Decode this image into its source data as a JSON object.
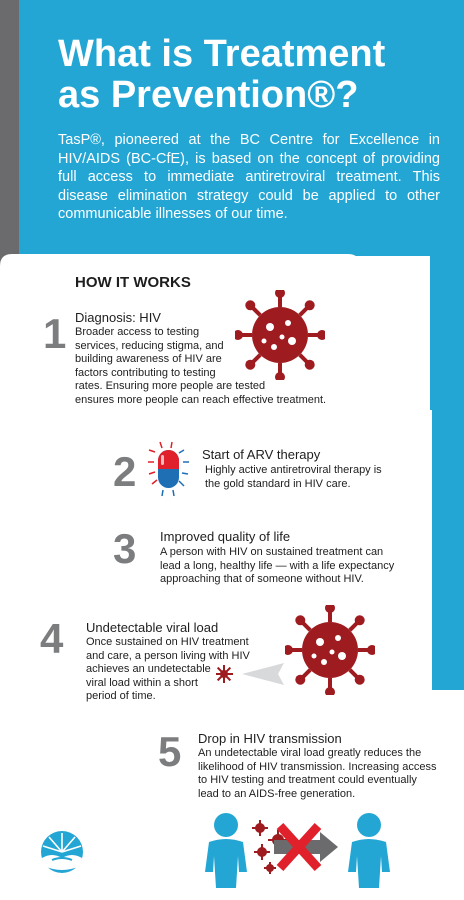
{
  "header": {
    "title_line1": "What is Treatment",
    "title_line2": "as Prevention®?",
    "intro": "TasP®, pioneered at the BC Centre for Excellence in HIV/AIDS (BC-CfE), is based on the concept of providing full access to immediate antiretroviral treatment. This disease elimination strategy could be applied to other communicable illnesses of our time."
  },
  "section_heading": "HOW IT WORKS",
  "steps": [
    {
      "number": "1",
      "title": "Diagnosis: HIV",
      "text_lines": [
        "Broader access to testing",
        "services, reducing stigma, and",
        "building awareness of HIV are",
        "factors contributing to testing",
        "rates. Ensuring more people are tested",
        "ensures more people can reach effective treatment."
      ]
    },
    {
      "number": "2",
      "title": "Start of ARV therapy",
      "text_lines": [
        "Highly active antiretroviral therapy is",
        "the gold standard in HIV care."
      ]
    },
    {
      "number": "3",
      "title": "Improved quality of life",
      "text_lines": [
        "A person with HIV on sustained treatment can",
        "lead a long, healthy life — with a life expectancy",
        "approaching that of someone without HIV."
      ]
    },
    {
      "number": "4",
      "title": "Undetectable viral load",
      "text_lines": [
        "Once sustained on HIV treatment",
        "and care, a person living with HIV",
        "achieves an undetectable",
        "viral load within a short",
        "period of time."
      ]
    },
    {
      "number": "5",
      "title": "Drop in HIV transmission",
      "text_lines": [
        "An undetectable viral load greatly reduces the",
        "likelihood of HIV transmission. Increasing access",
        "to HIV testing and treatment could eventually",
        "lead to an AIDS-free generation."
      ]
    }
  ],
  "colors": {
    "blue": "#24a6d4",
    "gray": "#6b6b6d",
    "virus": "#9e1b20",
    "cross": "#e0202a",
    "capsule_red": "#e0202a",
    "capsule_blue": "#1f6fb5"
  },
  "icons": [
    "virus-icon",
    "capsule-icon",
    "arrow-icon",
    "person-icon",
    "cross-icon",
    "logo-icon"
  ]
}
